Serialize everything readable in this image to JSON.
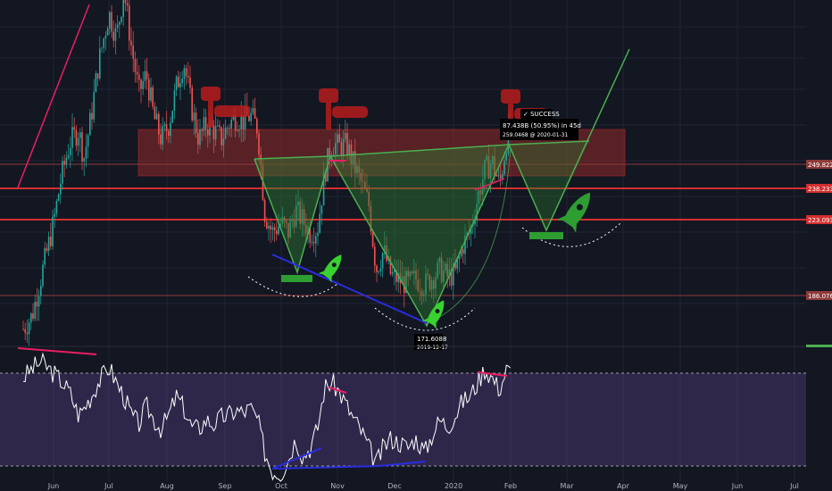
{
  "chart_data": {
    "type": "line",
    "instrument_kind": "candlestick price chart with RSI panel",
    "x_months": [
      "Jun",
      "Jul",
      "Aug",
      "Sep",
      "Oct",
      "Nov",
      "Dec",
      "2020",
      "Feb",
      "Mar",
      "Apr",
      "May",
      "Jun",
      "Jul"
    ],
    "price_levels": [
      "249.8228",
      "238.2336",
      "223.0938",
      "186.0768"
    ],
    "price_axis_colors": [
      "#8f3a3a",
      "#d32f2f",
      "#d32f2f",
      "#8f3a3a"
    ],
    "annotations": {
      "success_label": "✓ SUCCESS",
      "measure_text": "87.438B (50.95%) in 45d",
      "measure_sub": "259.0468 @ 2020-01-31",
      "low_label": "171.6088",
      "low_date": "2019-12-17"
    },
    "price_series": [
      [
        "May 15",
        148
      ],
      [
        "May 20",
        155
      ],
      [
        "May 25",
        176
      ],
      [
        "Jun 1",
        205
      ],
      [
        "Jun 5",
        228
      ],
      [
        "Jun 10",
        248
      ],
      [
        "Jun 15",
        255
      ],
      [
        "Jun 18",
        240
      ],
      [
        "Jun 22",
        262
      ],
      [
        "Jun 26",
        290
      ],
      [
        "Jul 1",
        318
      ],
      [
        "Jul 5",
        305
      ],
      [
        "Jul 9",
        330
      ],
      [
        "Jul 13",
        300
      ],
      [
        "Jul 17",
        275
      ],
      [
        "Jul 21",
        285
      ],
      [
        "Jul 25",
        262
      ],
      [
        "Jul 29",
        250
      ],
      [
        "Aug 2",
        258
      ],
      [
        "Aug 6",
        278
      ],
      [
        "Aug 10",
        292
      ],
      [
        "Aug 14",
        268
      ],
      [
        "Aug 18",
        250
      ],
      [
        "Aug 22",
        258
      ],
      [
        "Aug 26",
        255
      ],
      [
        "Aug 30",
        250
      ],
      [
        "Sep 3",
        258
      ],
      [
        "Sep 7",
        262
      ],
      [
        "Sep 11",
        260
      ],
      [
        "Sep 15",
        263
      ],
      [
        "Sep 19",
        256
      ],
      [
        "Sep 23",
        210
      ],
      [
        "Sep 27",
        200
      ],
      [
        "Oct 1",
        205
      ],
      [
        "Oct 5",
        200
      ],
      [
        "Oct 9",
        212
      ],
      [
        "Oct 13",
        206
      ],
      [
        "Oct 17",
        200
      ],
      [
        "Oct 21",
        202
      ],
      [
        "Oct 25",
        232
      ],
      [
        "Oct 29",
        248
      ],
      [
        "Nov 2",
        246
      ],
      [
        "Nov 6",
        247
      ],
      [
        "Nov 10",
        236
      ],
      [
        "Nov 14",
        226
      ],
      [
        "Nov 18",
        215
      ],
      [
        "Nov 22",
        180
      ],
      [
        "Nov 26",
        190
      ],
      [
        "Nov 30",
        177
      ],
      [
        "Dec 4",
        174
      ],
      [
        "Dec 8",
        172
      ],
      [
        "Dec 12",
        175
      ],
      [
        "Dec 17",
        171.6
      ],
      [
        "Dec 21",
        176
      ],
      [
        "Dec 25",
        180
      ],
      [
        "Dec 29",
        176
      ],
      [
        "Jan 2",
        178
      ],
      [
        "Jan 6",
        193
      ],
      [
        "Jan 10",
        200
      ],
      [
        "Jan 14",
        218
      ],
      [
        "Jan 18",
        233
      ],
      [
        "Jan 22",
        238
      ],
      [
        "Jan 26",
        225
      ],
      [
        "Jan 30",
        251
      ],
      [
        "Feb 1",
        259
      ]
    ],
    "price_ylim": [
      140,
      325
    ],
    "rsi_series": [
      [
        "May 15",
        68
      ],
      [
        "May 20",
        72
      ],
      [
        "May 25",
        75
      ],
      [
        "Jun 1",
        70
      ],
      [
        "Jun 5",
        67
      ],
      [
        "Jun 10",
        62
      ],
      [
        "Jun 15",
        52
      ],
      [
        "Jun 18",
        55
      ],
      [
        "Jun 22",
        60
      ],
      [
        "Jun 26",
        66
      ],
      [
        "Jul 1",
        73
      ],
      [
        "Jul 5",
        66
      ],
      [
        "Jul 9",
        60
      ],
      [
        "Jul 13",
        52
      ],
      [
        "Jul 17",
        48
      ],
      [
        "Jul 21",
        56
      ],
      [
        "Jul 25",
        50
      ],
      [
        "Jul 29",
        46
      ],
      [
        "Aug 2",
        52
      ],
      [
        "Aug 6",
        60
      ],
      [
        "Aug 10",
        55
      ],
      [
        "Aug 14",
        47
      ],
      [
        "Aug 18",
        46
      ],
      [
        "Aug 22",
        50
      ],
      [
        "Aug 26",
        48
      ],
      [
        "Aug 30",
        51
      ],
      [
        "Sep 3",
        52
      ],
      [
        "Sep 7",
        54
      ],
      [
        "Sep 11",
        53
      ],
      [
        "Sep 15",
        55
      ],
      [
        "Sep 19",
        50
      ],
      [
        "Sep 23",
        36
      ],
      [
        "Sep 27",
        28
      ],
      [
        "Oct 1",
        27
      ],
      [
        "Oct 5",
        33
      ],
      [
        "Oct 9",
        42
      ],
      [
        "Oct 13",
        34
      ],
      [
        "Oct 17",
        38
      ],
      [
        "Oct 21",
        46
      ],
      [
        "Oct 25",
        64
      ],
      [
        "Oct 29",
        66
      ],
      [
        "Nov 2",
        62
      ],
      [
        "Nov 6",
        56
      ],
      [
        "Nov 10",
        50
      ],
      [
        "Nov 14",
        45
      ],
      [
        "Nov 18",
        38
      ],
      [
        "Nov 22",
        31
      ],
      [
        "Nov 26",
        38
      ],
      [
        "Nov 30",
        42
      ],
      [
        "Dec 4",
        40
      ],
      [
        "Dec 8",
        38
      ],
      [
        "Dec 12",
        42
      ],
      [
        "Dec 17",
        36
      ],
      [
        "Dec 21",
        44
      ],
      [
        "Dec 25",
        50
      ],
      [
        "Dec 29",
        47
      ],
      [
        "Jan 2",
        52
      ],
      [
        "Jan 6",
        58
      ],
      [
        "Jan 10",
        60
      ],
      [
        "Jan 14",
        66
      ],
      [
        "Jan 18",
        72
      ],
      [
        "Jan 22",
        68
      ],
      [
        "Jan 26",
        63
      ],
      [
        "Jan 30",
        72
      ],
      [
        "Feb 1",
        70
      ]
    ],
    "rsi_ylim": [
      25,
      80
    ],
    "rsi_band": [
      30,
      70
    ],
    "colors": {
      "background": "#131722",
      "candle_up": "#26a69a",
      "candle_down": "#ef5350",
      "pattern_green": "#4caf50",
      "resistance_red": "#d32f2f",
      "rsi_line": "#ffffff",
      "rsi_band": "#7e57c2",
      "divergence_pink": "#e91e63",
      "divergence_blue": "#2a2de0"
    },
    "grid": true
  }
}
